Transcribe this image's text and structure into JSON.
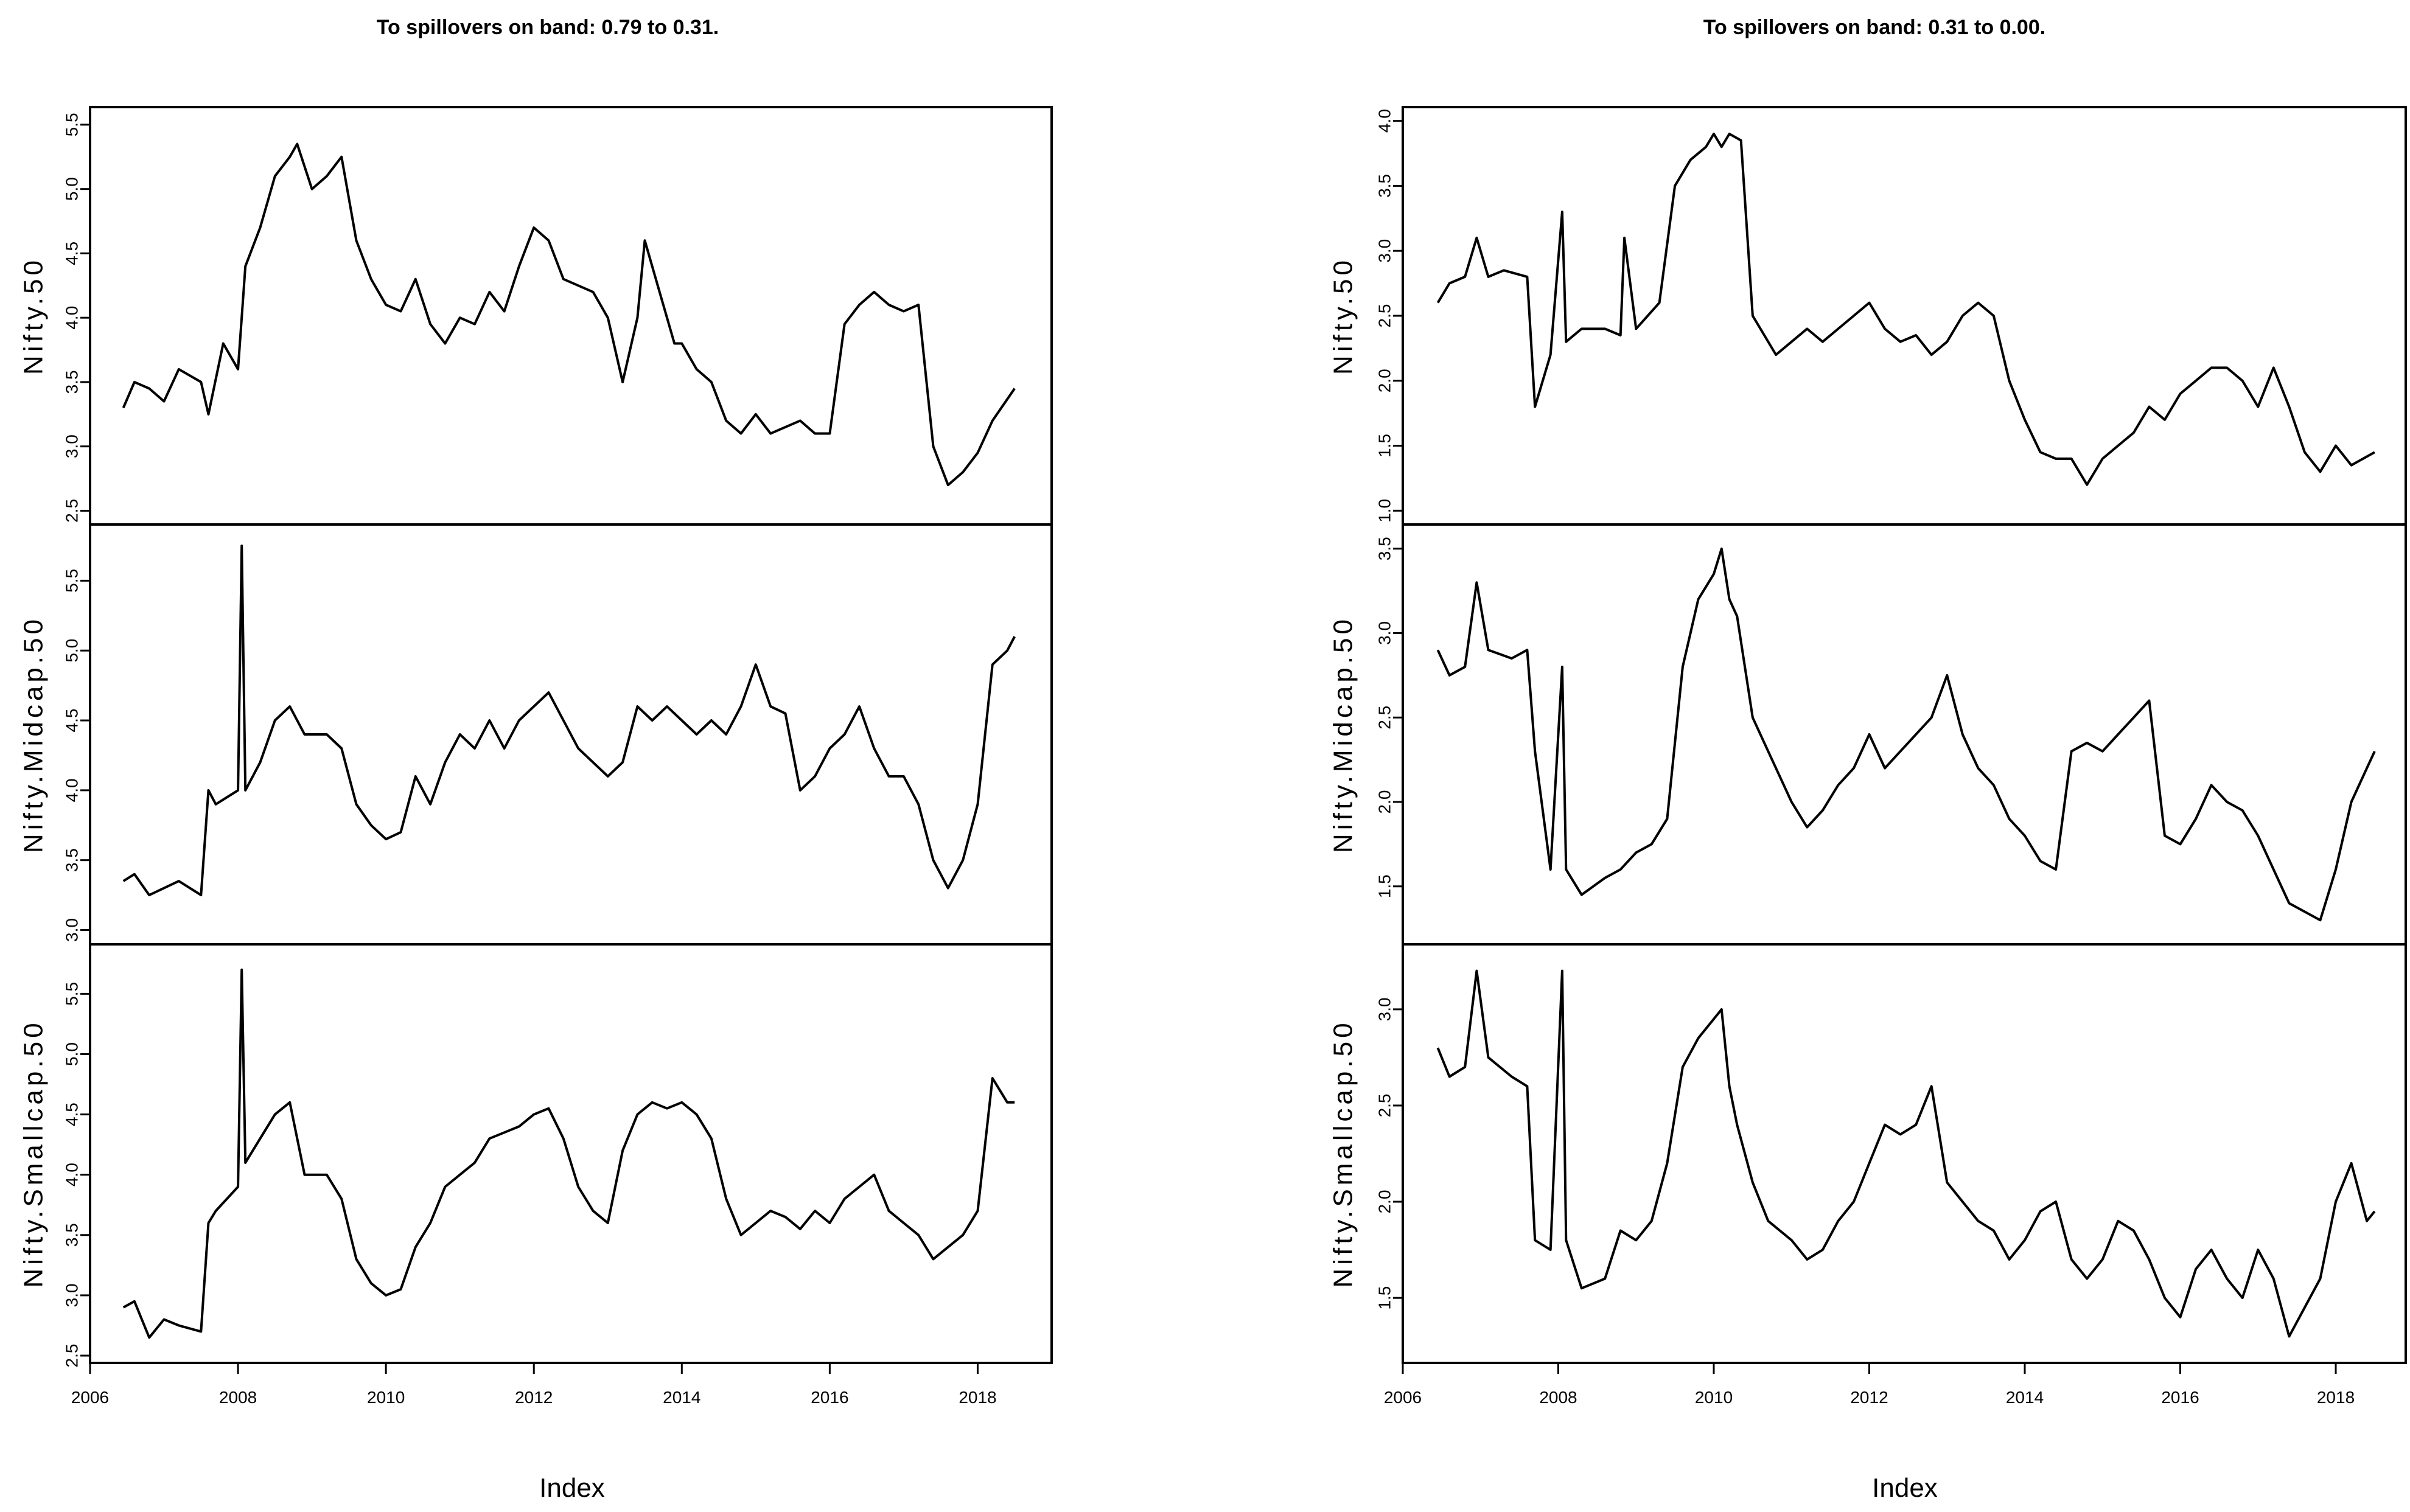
{
  "chart_data": [
    {
      "type": "line",
      "title": "To spillovers on band: 0.79 to 0.31.",
      "xlabel": "Index",
      "xticks": [
        2006,
        2008,
        2010,
        2012,
        2014,
        2016,
        2018
      ],
      "xlim": [
        2006,
        2019
      ],
      "panels": [
        {
          "ylabel": "Nifty.50",
          "ylim": [
            2.45,
            5.58
          ],
          "yticks": [
            "2.5",
            "3.0",
            "3.5",
            "4.0",
            "4.5",
            "5.0",
            "5.5"
          ],
          "x": [
            2006.45,
            2006.6,
            2006.8,
            2007.0,
            2007.2,
            2007.5,
            2007.6,
            2007.8,
            2008.0,
            2008.1,
            2008.3,
            2008.5,
            2008.7,
            2008.8,
            2009.0,
            2009.2,
            2009.4,
            2009.6,
            2009.8,
            2010.0,
            2010.2,
            2010.4,
            2010.6,
            2010.8,
            2011.0,
            2011.2,
            2011.4,
            2011.6,
            2011.8,
            2012.0,
            2012.2,
            2012.4,
            2012.6,
            2012.8,
            2013.0,
            2013.2,
            2013.4,
            2013.5,
            2013.7,
            2013.9,
            2014.0,
            2014.2,
            2014.4,
            2014.6,
            2014.8,
            2015.0,
            2015.2,
            2015.4,
            2015.6,
            2015.8,
            2016.0,
            2016.2,
            2016.4,
            2016.6,
            2016.8,
            2017.0,
            2017.2,
            2017.4,
            2017.6,
            2017.8,
            2018.0,
            2018.2,
            2018.5
          ],
          "y": [
            3.3,
            3.5,
            3.45,
            3.35,
            3.6,
            3.5,
            3.25,
            3.8,
            3.6,
            4.4,
            4.7,
            5.1,
            5.25,
            5.35,
            5.0,
            5.1,
            5.25,
            4.6,
            4.3,
            4.1,
            4.05,
            4.3,
            3.95,
            3.8,
            4.0,
            3.95,
            4.2,
            4.05,
            4.4,
            4.7,
            4.6,
            4.3,
            4.25,
            4.2,
            4.0,
            3.5,
            4.0,
            4.6,
            4.2,
            3.8,
            3.8,
            3.6,
            3.5,
            3.2,
            3.1,
            3.25,
            3.1,
            3.15,
            3.2,
            3.1,
            3.1,
            3.95,
            4.1,
            4.2,
            4.1,
            4.05,
            4.1,
            3.0,
            2.7,
            2.8,
            2.95,
            3.2,
            3.45
          ]
        },
        {
          "ylabel": "Nifty.Midcap.50",
          "ylim": [
            2.95,
            5.85
          ],
          "yticks": [
            "3.0",
            "3.5",
            "4.0",
            "4.5",
            "5.0",
            "5.5"
          ],
          "x": [
            2006.45,
            2006.6,
            2006.8,
            2007.0,
            2007.2,
            2007.5,
            2007.6,
            2007.7,
            2008.0,
            2008.05,
            2008.1,
            2008.3,
            2008.5,
            2008.7,
            2008.9,
            2009.2,
            2009.4,
            2009.6,
            2009.8,
            2010.0,
            2010.2,
            2010.4,
            2010.6,
            2010.8,
            2011.0,
            2011.2,
            2011.4,
            2011.6,
            2011.8,
            2012.0,
            2012.2,
            2012.4,
            2012.6,
            2012.8,
            2013.0,
            2013.2,
            2013.4,
            2013.6,
            2013.8,
            2014.0,
            2014.2,
            2014.4,
            2014.6,
            2014.8,
            2015.0,
            2015.2,
            2015.4,
            2015.6,
            2015.8,
            2016.0,
            2016.2,
            2016.4,
            2016.6,
            2016.8,
            2017.0,
            2017.2,
            2017.4,
            2017.6,
            2017.8,
            2018.0,
            2018.2,
            2018.4,
            2018.5
          ],
          "y": [
            3.35,
            3.4,
            3.25,
            3.3,
            3.35,
            3.25,
            4.0,
            3.9,
            4.0,
            5.75,
            4.0,
            4.2,
            4.5,
            4.6,
            4.4,
            4.4,
            4.3,
            3.9,
            3.75,
            3.65,
            3.7,
            4.1,
            3.9,
            4.2,
            4.4,
            4.3,
            4.5,
            4.3,
            4.5,
            4.6,
            4.7,
            4.5,
            4.3,
            4.2,
            4.1,
            4.2,
            4.6,
            4.5,
            4.6,
            4.5,
            4.4,
            4.5,
            4.4,
            4.6,
            4.9,
            4.6,
            4.55,
            4.0,
            4.1,
            4.3,
            4.4,
            4.6,
            4.3,
            4.1,
            4.1,
            3.9,
            3.5,
            3.3,
            3.5,
            3.9,
            4.9,
            5.0,
            5.1
          ]
        },
        {
          "ylabel": "Nifty.Smallcap.50",
          "ylim": [
            2.5,
            5.85
          ],
          "yticks": [
            "2.5",
            "3.0",
            "3.5",
            "4.0",
            "4.5",
            "5.0",
            "5.5"
          ],
          "x": [
            2006.45,
            2006.6,
            2006.8,
            2007.0,
            2007.2,
            2007.5,
            2007.6,
            2007.7,
            2008.0,
            2008.05,
            2008.1,
            2008.3,
            2008.5,
            2008.7,
            2008.9,
            2009.2,
            2009.4,
            2009.6,
            2009.8,
            2010.0,
            2010.2,
            2010.4,
            2010.6,
            2010.8,
            2011.0,
            2011.2,
            2011.4,
            2011.6,
            2011.8,
            2012.0,
            2012.2,
            2012.4,
            2012.6,
            2012.8,
            2013.0,
            2013.2,
            2013.4,
            2013.6,
            2013.8,
            2014.0,
            2014.2,
            2014.4,
            2014.6,
            2014.8,
            2015.0,
            2015.2,
            2015.4,
            2015.6,
            2015.8,
            2016.0,
            2016.2,
            2016.4,
            2016.6,
            2016.8,
            2017.0,
            2017.2,
            2017.4,
            2017.6,
            2017.8,
            2018.0,
            2018.2,
            2018.4,
            2018.5
          ],
          "y": [
            2.9,
            2.95,
            2.65,
            2.8,
            2.75,
            2.7,
            3.6,
            3.7,
            3.9,
            5.7,
            4.1,
            4.3,
            4.5,
            4.6,
            4.0,
            4.0,
            3.8,
            3.3,
            3.1,
            3.0,
            3.05,
            3.4,
            3.6,
            3.9,
            4.0,
            4.1,
            4.3,
            4.35,
            4.4,
            4.5,
            4.55,
            4.3,
            3.9,
            3.7,
            3.6,
            4.2,
            4.5,
            4.6,
            4.55,
            4.6,
            4.5,
            4.3,
            3.8,
            3.5,
            3.6,
            3.7,
            3.65,
            3.55,
            3.7,
            3.6,
            3.8,
            3.9,
            4.0,
            3.7,
            3.6,
            3.5,
            3.3,
            3.4,
            3.5,
            3.7,
            4.8,
            4.6,
            4.6
          ]
        }
      ]
    },
    {
      "type": "line",
      "title": "To spillovers on band: 0.31 to 0.00.",
      "xlabel": "Index",
      "xticks": [
        2006,
        2008,
        2010,
        2012,
        2014,
        2016,
        2018
      ],
      "xlim": [
        2006,
        2018.9
      ],
      "panels": [
        {
          "ylabel": "Nifty.50",
          "ylim": [
            0.95,
            4.05
          ],
          "yticks": [
            "1.0",
            "1.5",
            "2.0",
            "2.5",
            "3.0",
            "3.5",
            "4.0"
          ],
          "x": [
            2006.45,
            2006.6,
            2006.8,
            2006.95,
            2007.1,
            2007.3,
            2007.6,
            2007.7,
            2007.9,
            2008.05,
            2008.1,
            2008.3,
            2008.6,
            2008.8,
            2008.85,
            2009.0,
            2009.3,
            2009.5,
            2009.7,
            2009.9,
            2010.0,
            2010.1,
            2010.2,
            2010.35,
            2010.5,
            2010.6,
            2010.8,
            2011.0,
            2011.2,
            2011.4,
            2011.6,
            2011.8,
            2012.0,
            2012.2,
            2012.4,
            2012.6,
            2012.8,
            2013.0,
            2013.2,
            2013.4,
            2013.6,
            2013.8,
            2014.0,
            2014.2,
            2014.4,
            2014.6,
            2014.8,
            2015.0,
            2015.2,
            2015.4,
            2015.6,
            2015.8,
            2016.0,
            2016.2,
            2016.4,
            2016.6,
            2016.8,
            2017.0,
            2017.2,
            2017.4,
            2017.6,
            2017.8,
            2018.0,
            2018.2,
            2018.5
          ],
          "y": [
            2.6,
            2.75,
            2.8,
            3.1,
            2.8,
            2.85,
            2.8,
            1.8,
            2.2,
            3.3,
            2.3,
            2.4,
            2.4,
            2.35,
            3.1,
            2.4,
            2.6,
            3.5,
            3.7,
            3.8,
            3.9,
            3.8,
            3.9,
            3.85,
            2.5,
            2.4,
            2.2,
            2.3,
            2.4,
            2.3,
            2.4,
            2.5,
            2.6,
            2.4,
            2.3,
            2.35,
            2.2,
            2.3,
            2.5,
            2.6,
            2.5,
            2.0,
            1.7,
            1.45,
            1.4,
            1.4,
            1.2,
            1.4,
            1.5,
            1.6,
            1.8,
            1.7,
            1.9,
            2.0,
            2.1,
            2.1,
            2.0,
            1.8,
            2.1,
            1.8,
            1.45,
            1.3,
            1.5,
            1.35,
            1.45
          ]
        },
        {
          "ylabel": "Nifty.Midcap.50",
          "ylim": [
            1.2,
            3.6
          ],
          "yticks": [
            "1.5",
            "2.0",
            "2.5",
            "3.0",
            "3.5"
          ],
          "x": [
            2006.45,
            2006.6,
            2006.8,
            2006.95,
            2007.1,
            2007.4,
            2007.6,
            2007.7,
            2007.9,
            2008.05,
            2008.1,
            2008.3,
            2008.6,
            2008.8,
            2009.0,
            2009.2,
            2009.4,
            2009.6,
            2009.8,
            2010.0,
            2010.1,
            2010.2,
            2010.3,
            2010.5,
            2010.7,
            2011.0,
            2011.2,
            2011.4,
            2011.6,
            2011.8,
            2012.0,
            2012.2,
            2012.4,
            2012.6,
            2012.8,
            2013.0,
            2013.2,
            2013.4,
            2013.6,
            2013.8,
            2014.0,
            2014.2,
            2014.4,
            2014.6,
            2014.8,
            2015.0,
            2015.2,
            2015.4,
            2015.6,
            2015.8,
            2016.0,
            2016.2,
            2016.4,
            2016.6,
            2016.8,
            2017.0,
            2017.2,
            2017.4,
            2017.6,
            2017.8,
            2018.0,
            2018.2,
            2018.4,
            2018.5
          ],
          "y": [
            2.9,
            2.75,
            2.8,
            3.3,
            2.9,
            2.85,
            2.9,
            2.3,
            1.6,
            2.8,
            1.6,
            1.45,
            1.55,
            1.6,
            1.7,
            1.75,
            1.9,
            2.8,
            3.2,
            3.35,
            3.5,
            3.2,
            3.1,
            2.5,
            2.3,
            2.0,
            1.85,
            1.95,
            2.1,
            2.2,
            2.4,
            2.2,
            2.3,
            2.4,
            2.5,
            2.75,
            2.4,
            2.2,
            2.1,
            1.9,
            1.8,
            1.65,
            1.6,
            2.3,
            2.35,
            2.3,
            2.4,
            2.5,
            2.6,
            1.8,
            1.75,
            1.9,
            2.1,
            2.0,
            1.95,
            1.8,
            1.6,
            1.4,
            1.35,
            1.3,
            1.6,
            2.0,
            2.2,
            2.3
          ]
        },
        {
          "ylabel": "Nifty.Smallcap.50",
          "ylim": [
            1.2,
            3.3
          ],
          "yticks": [
            "1.5",
            "2.0",
            "2.5",
            "3.0"
          ],
          "x": [
            2006.45,
            2006.6,
            2006.8,
            2006.95,
            2007.1,
            2007.4,
            2007.6,
            2007.7,
            2007.9,
            2008.05,
            2008.1,
            2008.3,
            2008.6,
            2008.8,
            2009.0,
            2009.2,
            2009.4,
            2009.6,
            2009.8,
            2010.0,
            2010.1,
            2010.2,
            2010.3,
            2010.5,
            2010.7,
            2011.0,
            2011.2,
            2011.4,
            2011.6,
            2011.8,
            2012.0,
            2012.2,
            2012.4,
            2012.6,
            2012.8,
            2013.0,
            2013.2,
            2013.4,
            2013.6,
            2013.8,
            2014.0,
            2014.2,
            2014.4,
            2014.6,
            2014.8,
            2015.0,
            2015.2,
            2015.4,
            2015.6,
            2015.8,
            2016.0,
            2016.2,
            2016.4,
            2016.6,
            2016.8,
            2017.0,
            2017.2,
            2017.4,
            2017.6,
            2017.8,
            2018.0,
            2018.2,
            2018.4,
            2018.5
          ],
          "y": [
            2.8,
            2.65,
            2.7,
            3.2,
            2.75,
            2.65,
            2.6,
            1.8,
            1.75,
            3.2,
            1.8,
            1.55,
            1.6,
            1.85,
            1.8,
            1.9,
            2.2,
            2.7,
            2.85,
            2.95,
            3.0,
            2.6,
            2.4,
            2.1,
            1.9,
            1.8,
            1.7,
            1.75,
            1.9,
            2.0,
            2.2,
            2.4,
            2.35,
            2.4,
            2.6,
            2.1,
            2.0,
            1.9,
            1.85,
            1.7,
            1.8,
            1.95,
            2.0,
            1.7,
            1.6,
            1.7,
            1.9,
            1.85,
            1.7,
            1.5,
            1.4,
            1.65,
            1.75,
            1.6,
            1.5,
            1.75,
            1.6,
            1.3,
            1.45,
            1.6,
            2.0,
            2.2,
            1.9,
            1.95
          ]
        }
      ]
    }
  ]
}
